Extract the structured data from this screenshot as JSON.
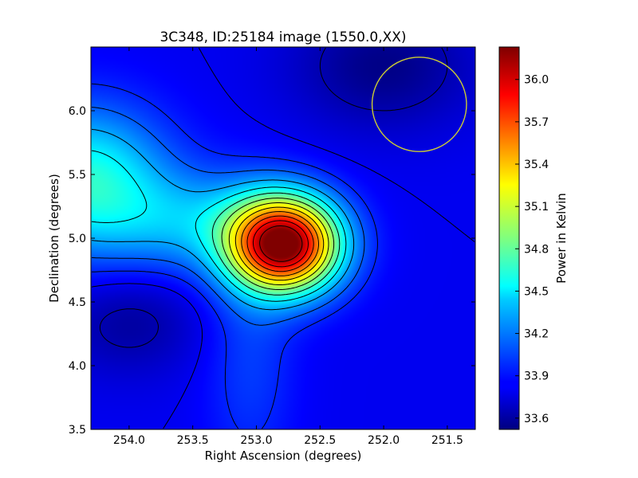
{
  "chart_data": {
    "type": "heatmap",
    "title": "3C348, ID:25184 image (1550.0,XX)",
    "xlabel": "Right Ascension (degrees)",
    "ylabel": "Declination (degrees)",
    "xlim": [
      254.3,
      251.28
    ],
    "ylim": [
      3.5,
      6.5
    ],
    "x_ticks": [
      254.0,
      253.5,
      253.0,
      252.5,
      252.0,
      251.5
    ],
    "x_tick_labels": [
      "254.0",
      "253.5",
      "253.0",
      "252.5",
      "252.0",
      "251.5"
    ],
    "y_ticks": [
      3.5,
      4.0,
      4.5,
      5.0,
      5.5,
      6.0
    ],
    "y_tick_labels": [
      "3.5",
      "4.0",
      "4.5",
      "5.0",
      "5.5",
      "6.0"
    ],
    "colorbar": {
      "label": "Power in Kelvin",
      "range": [
        33.52,
        36.23
      ],
      "ticks": [
        33.6,
        33.9,
        34.2,
        34.5,
        34.8,
        35.1,
        35.4,
        35.7,
        36.0
      ],
      "tick_labels": [
        "33.6",
        "33.9",
        "34.2",
        "34.5",
        "34.8",
        "35.1",
        "35.4",
        "35.7",
        "36.0"
      ],
      "colormap": "jet"
    },
    "field": {
      "base": 33.82,
      "components": [
        {
          "ra": 252.78,
          "dec": 4.95,
          "sigma_ra": 0.3,
          "sigma_dec": 0.26,
          "amp": 2.4
        },
        {
          "ra": 254.35,
          "dec": 5.45,
          "sigma_ra": 0.45,
          "sigma_dec": 0.4,
          "amp": 0.8
        },
        {
          "ra": 253.45,
          "dec": 5.12,
          "sigma_ra": 0.5,
          "sigma_dec": 0.28,
          "amp": 0.45
        },
        {
          "ra": 253.05,
          "dec": 4.1,
          "sigma_ra": 0.25,
          "sigma_dec": 0.7,
          "amp": 0.2
        },
        {
          "ra": 252.0,
          "dec": 6.35,
          "sigma_ra": 0.5,
          "sigma_dec": 0.35,
          "amp": -0.28
        },
        {
          "ra": 254.0,
          "dec": 4.35,
          "sigma_ra": 0.4,
          "sigma_dec": 0.3,
          "amp": -0.22
        }
      ]
    },
    "contour_levels": [
      33.65,
      33.82,
      33.95,
      34.1,
      34.3,
      34.5,
      34.7,
      34.9,
      35.1,
      35.3,
      35.5,
      35.7,
      35.9,
      36.1
    ],
    "beam_circle": {
      "ra": 251.72,
      "dec": 6.05,
      "radius_deg": 0.37,
      "color": "#cccc33"
    },
    "grid": false,
    "legend": "none"
  }
}
